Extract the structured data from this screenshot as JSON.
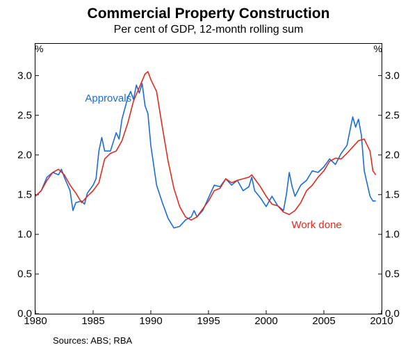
{
  "title": "Commercial Property Construction",
  "subtitle": "Per cent of GDP, 12-month rolling sum",
  "y_unit": "%",
  "sources": "Sources: ABS; RBA",
  "plot": {
    "x_min": 1980,
    "x_max": 2010,
    "y_min": 0.0,
    "y_max": 3.4,
    "y_ticks": [
      0.0,
      0.5,
      1.0,
      1.5,
      2.0,
      2.5,
      3.0
    ],
    "y_tick_labels": [
      "0.0",
      "0.5",
      "1.0",
      "1.5",
      "2.0",
      "2.5",
      "3.0"
    ],
    "x_ticks": [
      1980,
      1985,
      1990,
      1995,
      2000,
      2005,
      2010
    ],
    "x_tick_labels": [
      "1980",
      "1985",
      "1990",
      "1995",
      "2000",
      "2005",
      "2010"
    ],
    "tick_len": 5,
    "border_color": "#000000",
    "background_color": "#ffffff",
    "line_width": 1.6
  },
  "series": [
    {
      "name": "Approvals",
      "color": "#1a6cd6",
      "label_x": 1984.3,
      "label_y": 2.72,
      "data": [
        [
          1980.0,
          1.48
        ],
        [
          1980.5,
          1.55
        ],
        [
          1981.0,
          1.72
        ],
        [
          1981.5,
          1.78
        ],
        [
          1982.0,
          1.75
        ],
        [
          1982.25,
          1.82
        ],
        [
          1982.5,
          1.72
        ],
        [
          1983.0,
          1.55
        ],
        [
          1983.25,
          1.3
        ],
        [
          1983.5,
          1.4
        ],
        [
          1984.0,
          1.42
        ],
        [
          1984.25,
          1.38
        ],
        [
          1984.5,
          1.52
        ],
        [
          1985.0,
          1.62
        ],
        [
          1985.25,
          1.7
        ],
        [
          1985.5,
          2.05
        ],
        [
          1985.75,
          2.22
        ],
        [
          1986.0,
          2.05
        ],
        [
          1986.5,
          2.05
        ],
        [
          1987.0,
          2.28
        ],
        [
          1987.25,
          2.2
        ],
        [
          1987.5,
          2.45
        ],
        [
          1988.0,
          2.72
        ],
        [
          1988.25,
          2.8
        ],
        [
          1988.5,
          2.7
        ],
        [
          1988.75,
          2.88
        ],
        [
          1989.0,
          2.78
        ],
        [
          1989.25,
          2.9
        ],
        [
          1989.5,
          2.62
        ],
        [
          1989.75,
          2.52
        ],
        [
          1990.0,
          2.12
        ],
        [
          1990.5,
          1.62
        ],
        [
          1991.0,
          1.4
        ],
        [
          1991.5,
          1.2
        ],
        [
          1992.0,
          1.08
        ],
        [
          1992.5,
          1.1
        ],
        [
          1993.0,
          1.18
        ],
        [
          1993.5,
          1.22
        ],
        [
          1993.75,
          1.3
        ],
        [
          1994.0,
          1.22
        ],
        [
          1994.5,
          1.3
        ],
        [
          1995.0,
          1.46
        ],
        [
          1995.5,
          1.62
        ],
        [
          1996.0,
          1.6
        ],
        [
          1996.5,
          1.7
        ],
        [
          1997.0,
          1.62
        ],
        [
          1997.5,
          1.68
        ],
        [
          1998.0,
          1.55
        ],
        [
          1998.5,
          1.6
        ],
        [
          1998.75,
          1.72
        ],
        [
          1999.0,
          1.55
        ],
        [
          1999.5,
          1.46
        ],
        [
          2000.0,
          1.35
        ],
        [
          2000.5,
          1.48
        ],
        [
          2001.0,
          1.36
        ],
        [
          2001.5,
          1.3
        ],
        [
          2001.75,
          1.5
        ],
        [
          2002.0,
          1.78
        ],
        [
          2002.25,
          1.6
        ],
        [
          2002.5,
          1.48
        ],
        [
          2003.0,
          1.62
        ],
        [
          2003.5,
          1.68
        ],
        [
          2004.0,
          1.8
        ],
        [
          2004.5,
          1.78
        ],
        [
          2005.0,
          1.85
        ],
        [
          2005.5,
          1.95
        ],
        [
          2006.0,
          1.88
        ],
        [
          2006.5,
          2.02
        ],
        [
          2007.0,
          2.12
        ],
        [
          2007.25,
          2.3
        ],
        [
          2007.5,
          2.48
        ],
        [
          2007.75,
          2.35
        ],
        [
          2008.0,
          2.45
        ],
        [
          2008.25,
          2.25
        ],
        [
          2008.5,
          1.8
        ],
        [
          2009.0,
          1.48
        ],
        [
          2009.25,
          1.42
        ],
        [
          2009.5,
          1.42
        ]
      ]
    },
    {
      "name": "Work done",
      "color": "#e22a1f",
      "label_x": 2002.2,
      "label_y": 1.12,
      "data": [
        [
          1980.0,
          1.48
        ],
        [
          1980.5,
          1.55
        ],
        [
          1981.0,
          1.68
        ],
        [
          1981.5,
          1.78
        ],
        [
          1982.0,
          1.82
        ],
        [
          1982.5,
          1.75
        ],
        [
          1983.0,
          1.62
        ],
        [
          1983.5,
          1.52
        ],
        [
          1984.0,
          1.4
        ],
        [
          1984.5,
          1.48
        ],
        [
          1985.0,
          1.55
        ],
        [
          1985.5,
          1.65
        ],
        [
          1986.0,
          1.95
        ],
        [
          1986.5,
          2.02
        ],
        [
          1987.0,
          2.05
        ],
        [
          1987.5,
          2.18
        ],
        [
          1988.0,
          2.4
        ],
        [
          1988.5,
          2.68
        ],
        [
          1989.0,
          2.85
        ],
        [
          1989.5,
          3.02
        ],
        [
          1989.75,
          3.05
        ],
        [
          1990.0,
          2.95
        ],
        [
          1990.5,
          2.8
        ],
        [
          1991.0,
          2.35
        ],
        [
          1991.5,
          1.92
        ],
        [
          1992.0,
          1.58
        ],
        [
          1992.5,
          1.35
        ],
        [
          1993.0,
          1.22
        ],
        [
          1993.5,
          1.18
        ],
        [
          1994.0,
          1.22
        ],
        [
          1994.5,
          1.32
        ],
        [
          1995.0,
          1.42
        ],
        [
          1995.5,
          1.55
        ],
        [
          1996.0,
          1.58
        ],
        [
          1996.5,
          1.7
        ],
        [
          1997.0,
          1.65
        ],
        [
          1997.5,
          1.68
        ],
        [
          1998.0,
          1.7
        ],
        [
          1998.5,
          1.72
        ],
        [
          1998.75,
          1.75
        ],
        [
          1999.0,
          1.7
        ],
        [
          1999.5,
          1.6
        ],
        [
          2000.0,
          1.48
        ],
        [
          2000.5,
          1.38
        ],
        [
          2001.0,
          1.36
        ],
        [
          2001.5,
          1.28
        ],
        [
          2002.0,
          1.25
        ],
        [
          2002.5,
          1.3
        ],
        [
          2003.0,
          1.4
        ],
        [
          2003.5,
          1.55
        ],
        [
          2004.0,
          1.62
        ],
        [
          2004.5,
          1.72
        ],
        [
          2005.0,
          1.8
        ],
        [
          2005.5,
          1.92
        ],
        [
          2006.0,
          1.96
        ],
        [
          2006.5,
          1.95
        ],
        [
          2007.0,
          2.02
        ],
        [
          2007.5,
          2.1
        ],
        [
          2008.0,
          2.18
        ],
        [
          2008.5,
          2.2
        ],
        [
          2009.0,
          2.05
        ],
        [
          2009.25,
          1.8
        ],
        [
          2009.5,
          1.75
        ]
      ]
    }
  ]
}
